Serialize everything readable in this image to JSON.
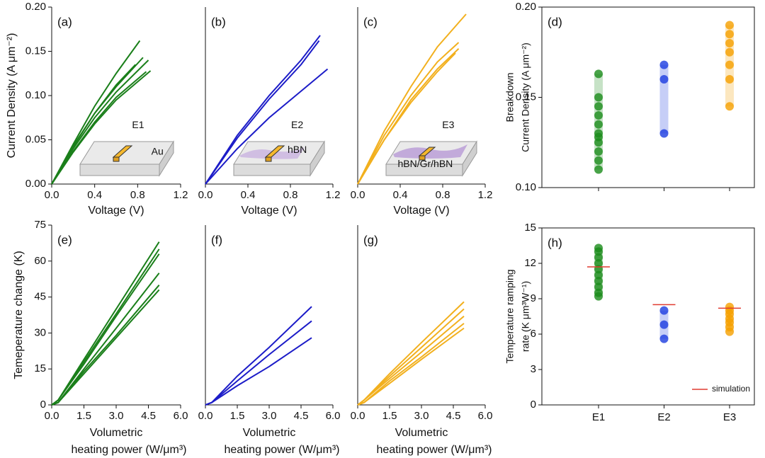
{
  "chart_data": [
    {
      "type": "line",
      "label": "(a)",
      "xlabel": "Voltage (V)",
      "ylabel": "Current Density (A μm⁻²)",
      "xlim": [
        0,
        1.2
      ],
      "xticks": [
        {
          "value": 0,
          "label": "0.0"
        },
        {
          "value": 0.4,
          "label": "0.4"
        },
        {
          "value": 0.8,
          "label": "0.8"
        },
        {
          "value": 1.2,
          "label": "1.2"
        }
      ],
      "ylim": [
        0,
        0.2
      ],
      "yticks": [
        {
          "value": 0,
          "label": "0.00"
        },
        {
          "value": 0.05,
          "label": "0.05"
        },
        {
          "value": 0.1,
          "label": "0.10"
        },
        {
          "value": 0.15,
          "label": "0.15"
        },
        {
          "value": 0.2,
          "label": "0.20"
        }
      ],
      "annotations": [
        "E1",
        "Au"
      ],
      "series": [
        {
          "color": "#1a7f1a",
          "x": [
            0,
            0.2,
            0.4,
            0.6,
            0.82
          ],
          "values": [
            0,
            0.045,
            0.088,
            0.125,
            0.162
          ]
        },
        {
          "color": "#1a7f1a",
          "x": [
            0,
            0.2,
            0.4,
            0.6,
            0.85
          ],
          "values": [
            0,
            0.042,
            0.08,
            0.11,
            0.143
          ]
        },
        {
          "color": "#1a7f1a",
          "x": [
            0,
            0.2,
            0.4,
            0.6,
            0.9
          ],
          "values": [
            0,
            0.04,
            0.075,
            0.104,
            0.14
          ]
        },
        {
          "color": "#1a7f1a",
          "x": [
            0,
            0.2,
            0.4,
            0.6,
            0.92
          ],
          "values": [
            0,
            0.036,
            0.068,
            0.095,
            0.128
          ]
        },
        {
          "color": "#1a7f1a",
          "x": [
            0,
            0.2,
            0.4,
            0.6,
            0.88
          ],
          "values": [
            0,
            0.037,
            0.07,
            0.098,
            0.127
          ]
        },
        {
          "color": "#1a7f1a",
          "x": [
            0,
            0.2,
            0.4,
            0.6,
            0.78
          ],
          "values": [
            0,
            0.043,
            0.08,
            0.112,
            0.135
          ]
        }
      ]
    },
    {
      "type": "line",
      "label": "(b)",
      "xlabel": "Voltage (V)",
      "xlim": [
        0,
        1.2
      ],
      "xticks": [
        {
          "value": 0,
          "label": "0.0"
        },
        {
          "value": 0.4,
          "label": "0.4"
        },
        {
          "value": 0.8,
          "label": "0.8"
        },
        {
          "value": 1.2,
          "label": "1.2"
        }
      ],
      "ylim": [
        0,
        0.2
      ],
      "annotations": [
        "E2",
        "hBN"
      ],
      "series": [
        {
          "color": "#1c1cc8",
          "x": [
            0,
            0.3,
            0.6,
            0.9,
            1.08
          ],
          "values": [
            0,
            0.055,
            0.1,
            0.14,
            0.168
          ]
        },
        {
          "color": "#1c1cc8",
          "x": [
            0,
            0.3,
            0.6,
            0.9,
            1.07
          ],
          "values": [
            0,
            0.052,
            0.096,
            0.135,
            0.162
          ]
        },
        {
          "color": "#1c1cc8",
          "x": [
            0,
            0.3,
            0.6,
            0.9,
            1.15
          ],
          "values": [
            0,
            0.04,
            0.075,
            0.105,
            0.13
          ]
        }
      ]
    },
    {
      "type": "line",
      "label": "(c)",
      "xlabel": "Voltage (V)",
      "xlim": [
        0,
        1.2
      ],
      "xticks": [
        {
          "value": 0,
          "label": "0.0"
        },
        {
          "value": 0.4,
          "label": "0.4"
        },
        {
          "value": 0.8,
          "label": "0.8"
        },
        {
          "value": 1.2,
          "label": "1.2"
        }
      ],
      "ylim": [
        0,
        0.2
      ],
      "annotations": [
        "E3",
        "hBN/Gr/hBN"
      ],
      "series": [
        {
          "color": "#f2b01e",
          "x": [
            0,
            0.25,
            0.5,
            0.75,
            1.02
          ],
          "values": [
            0,
            0.06,
            0.11,
            0.155,
            0.192
          ]
        },
        {
          "color": "#f2b01e",
          "x": [
            0,
            0.25,
            0.5,
            0.75,
            0.95
          ],
          "values": [
            0,
            0.055,
            0.1,
            0.138,
            0.16
          ]
        },
        {
          "color": "#f2b01e",
          "x": [
            0,
            0.25,
            0.5,
            0.75,
            0.95
          ],
          "values": [
            0,
            0.05,
            0.095,
            0.13,
            0.153
          ]
        },
        {
          "color": "#f2b01e",
          "x": [
            0,
            0.25,
            0.5,
            0.75,
            0.92
          ],
          "values": [
            0,
            0.05,
            0.092,
            0.127,
            0.148
          ]
        }
      ]
    },
    {
      "type": "strip",
      "label": "(d)",
      "ylabel": [
        "Breakdown",
        "Current Density (A μm⁻²)"
      ],
      "ylim": [
        0.1,
        0.2
      ],
      "yticks": [
        {
          "value": 0.1,
          "label": "0.10"
        },
        {
          "value": 0.15,
          "label": "0.15"
        },
        {
          "value": 0.2,
          "label": "0.20"
        }
      ],
      "categories": [
        null,
        null,
        null
      ],
      "series": [
        {
          "color": "#1a8c1a",
          "values": [
            0.163,
            0.15,
            0.145,
            0.14,
            0.135,
            0.13,
            0.128,
            0.125,
            0.12,
            0.115,
            0.11
          ]
        },
        {
          "color": "#1c3ce0",
          "values": [
            0.168,
            0.16,
            0.13
          ]
        },
        {
          "color": "#f5a000",
          "values": [
            0.19,
            0.185,
            0.18,
            0.175,
            0.168,
            0.16,
            0.145
          ]
        }
      ]
    },
    {
      "type": "line",
      "label": "(e)",
      "xlabel": [
        "Volumetric",
        "heating power (W/μm³)"
      ],
      "ylabel": "Temeperature change (K)",
      "xlim": [
        0,
        6
      ],
      "xticks": [
        {
          "value": 0,
          "label": "0.0"
        },
        {
          "value": 1.5,
          "label": "1.5"
        },
        {
          "value": 3,
          "label": "3.0"
        },
        {
          "value": 4.5,
          "label": "4.5"
        },
        {
          "value": 6,
          "label": "6.0"
        }
      ],
      "ylim": [
        0,
        75
      ],
      "yticks": [
        0,
        15,
        30,
        45,
        60,
        75
      ],
      "series": [
        {
          "color": "#1a7f1a",
          "x": [
            0,
            0.3,
            1.5,
            3,
            5
          ],
          "values": [
            0,
            2,
            19,
            40,
            68
          ]
        },
        {
          "color": "#1a7f1a",
          "x": [
            0,
            0.3,
            1.5,
            3,
            5
          ],
          "values": [
            0,
            2,
            18,
            38,
            65
          ]
        },
        {
          "color": "#1a7f1a",
          "x": [
            0,
            0.3,
            1.5,
            3,
            5
          ],
          "values": [
            0,
            2,
            17,
            37,
            63
          ]
        },
        {
          "color": "#1a7f1a",
          "x": [
            0,
            0.3,
            1.5,
            3,
            5
          ],
          "values": [
            0,
            1,
            15,
            32,
            55
          ]
        },
        {
          "color": "#1a7f1a",
          "x": [
            0,
            0.3,
            1.5,
            3,
            5
          ],
          "values": [
            0,
            1,
            14,
            29,
            50
          ]
        },
        {
          "color": "#1a7f1a",
          "x": [
            0,
            0.3,
            1.5,
            3,
            5
          ],
          "values": [
            0,
            1,
            13,
            28,
            48
          ]
        }
      ]
    },
    {
      "type": "line",
      "label": "(f)",
      "xlabel": [
        "Volumetric",
        "heating power (W/μm³)"
      ],
      "xlim": [
        0,
        6
      ],
      "xticks": [
        {
          "value": 0,
          "label": "0.0"
        },
        {
          "value": 1.5,
          "label": "1.5"
        },
        {
          "value": 3,
          "label": "3.0"
        },
        {
          "value": 4.5,
          "label": "4.5"
        },
        {
          "value": 6,
          "label": "6.0"
        }
      ],
      "ylim": [
        0,
        75
      ],
      "series": [
        {
          "color": "#1c1cc8",
          "x": [
            0,
            0.3,
            1.5,
            3,
            5
          ],
          "values": [
            0,
            1,
            12,
            24,
            41
          ]
        },
        {
          "color": "#1c1cc8",
          "x": [
            0,
            0.3,
            1.5,
            3,
            5
          ],
          "values": [
            0,
            1,
            10,
            21,
            35
          ]
        },
        {
          "color": "#1c1cc8",
          "x": [
            0,
            0.3,
            1.5,
            3,
            5
          ],
          "values": [
            0,
            1,
            8,
            16,
            28
          ]
        }
      ]
    },
    {
      "type": "line",
      "label": "(g)",
      "xlabel": [
        "Volumetric",
        "heating power (W/μm³)"
      ],
      "xlim": [
        0,
        6
      ],
      "xticks": [
        {
          "value": 0,
          "label": "0.0"
        },
        {
          "value": 1.5,
          "label": "1.5"
        },
        {
          "value": 3,
          "label": "3.0"
        },
        {
          "value": 4.5,
          "label": "4.5"
        },
        {
          "value": 6,
          "label": "6.0"
        }
      ],
      "ylim": [
        0,
        75
      ],
      "series": [
        {
          "color": "#f2b01e",
          "x": [
            0,
            0.3,
            1.5,
            3,
            5
          ],
          "values": [
            0,
            2,
            13,
            26,
            43
          ]
        },
        {
          "color": "#f2b01e",
          "x": [
            0,
            0.3,
            1.5,
            3,
            5
          ],
          "values": [
            0,
            2,
            12,
            24,
            40
          ]
        },
        {
          "color": "#f2b01e",
          "x": [
            0,
            0.3,
            1.5,
            3,
            5
          ],
          "values": [
            0,
            2,
            11,
            22,
            37
          ]
        },
        {
          "color": "#f2b01e",
          "x": [
            0,
            0.3,
            1.5,
            3,
            5
          ],
          "values": [
            0,
            1,
            10,
            20,
            34
          ]
        },
        {
          "color": "#f2b01e",
          "x": [
            0,
            0.3,
            1.5,
            3,
            5
          ],
          "values": [
            0,
            1,
            9,
            19,
            32
          ]
        }
      ]
    },
    {
      "type": "strip",
      "label": "(h)",
      "ylabel": [
        "Temperature ramping",
        "rate (K μm³W⁻¹)"
      ],
      "ylim": [
        0,
        15
      ],
      "yticks": [
        0,
        3,
        6,
        9,
        12,
        15
      ],
      "categories": [
        "E1",
        "E2",
        "E3"
      ],
      "legend": "lower right",
      "series": [
        {
          "color": "#1a8c1a",
          "values": [
            13.3,
            13,
            12.5,
            12,
            11.5,
            11,
            10.5,
            10,
            9.5,
            9.2
          ]
        },
        {
          "color": "#1c3ce0",
          "values": [
            8,
            6.8,
            5.6
          ]
        },
        {
          "color": "#f5a000",
          "values": [
            8.3,
            8,
            7.7,
            7.3,
            7,
            6.6,
            6.2
          ]
        }
      ],
      "simulation": {
        "name": "simulation",
        "color": "#e03c31",
        "values": [
          11.7,
          8.5,
          8.2
        ]
      }
    }
  ]
}
